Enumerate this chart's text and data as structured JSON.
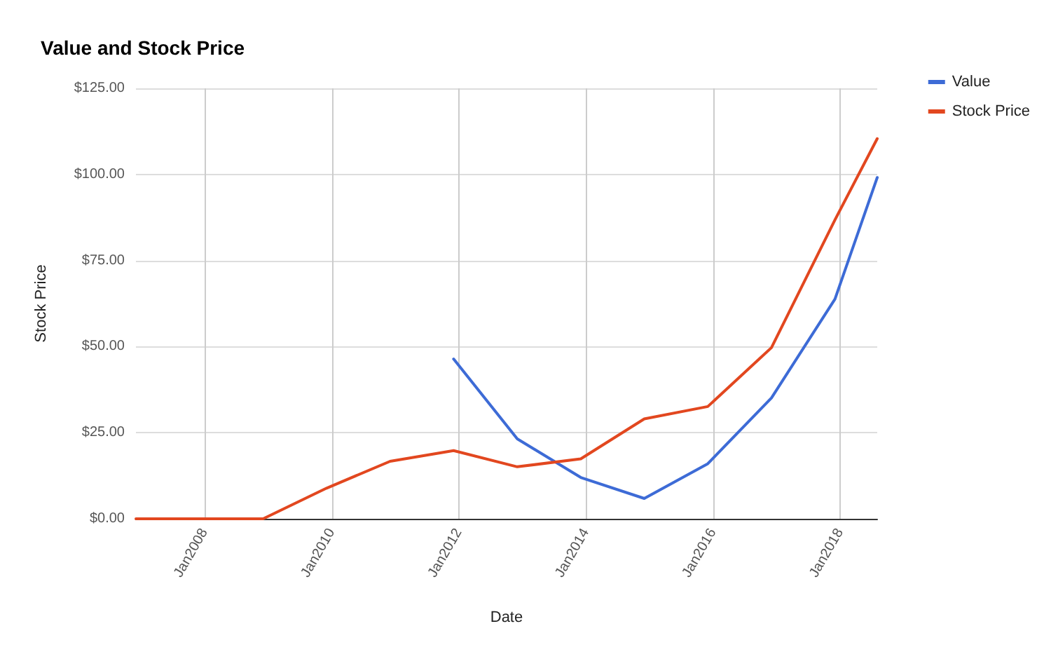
{
  "chart_data": {
    "type": "line",
    "title": "Value and Stock Price",
    "xlabel": "Date",
    "ylabel": "Stock Price",
    "x": [
      "2006-12",
      "2007-12",
      "2008-12",
      "2009-12",
      "2010-12",
      "2011-12",
      "2012-12",
      "2013-12",
      "2014-12",
      "2015-12",
      "2016-12",
      "2017-12",
      "2018-08"
    ],
    "series": [
      {
        "name": "Value",
        "color": "#3d6bd6",
        "values": [
          null,
          null,
          null,
          null,
          null,
          46.4,
          23.2,
          12.0,
          5.9,
          16.0,
          35.1,
          63.8,
          99.1
        ]
      },
      {
        "name": "Stock Price",
        "color": "#e2471f",
        "values": [
          0,
          0,
          0,
          8.9,
          16.7,
          19.8,
          15.1,
          17.4,
          29.0,
          32.6,
          49.7,
          86.8,
          110.4
        ]
      }
    ],
    "xlim": [
      "2006-12",
      "2018-08"
    ],
    "xticks": [
      {
        "value": "2008-01",
        "label": "Jan2008"
      },
      {
        "value": "2010-01",
        "label": "Jan2010"
      },
      {
        "value": "2012-01",
        "label": "Jan2012"
      },
      {
        "value": "2014-01",
        "label": "Jan2014"
      },
      {
        "value": "2016-01",
        "label": "Jan2016"
      },
      {
        "value": "2018-01",
        "label": "Jan2018"
      }
    ],
    "ylim": [
      0,
      125
    ],
    "yticks": [
      {
        "value": 0,
        "label": "$0.00"
      },
      {
        "value": 25,
        "label": "$25.00"
      },
      {
        "value": 50,
        "label": "$50.00"
      },
      {
        "value": 75,
        "label": "$75.00"
      },
      {
        "value": 100,
        "label": "$100.00"
      },
      {
        "value": 125,
        "label": "$125.00"
      }
    ],
    "grid": true,
    "legend": "right",
    "marker": "none",
    "line_style": "solid"
  }
}
